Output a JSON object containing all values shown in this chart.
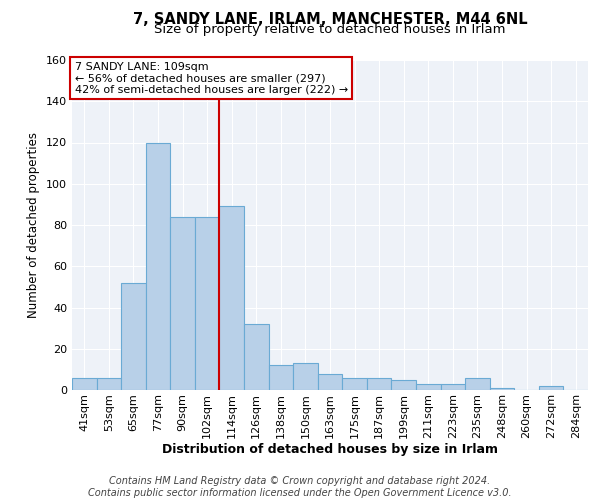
{
  "title": "7, SANDY LANE, IRLAM, MANCHESTER, M44 6NL",
  "subtitle": "Size of property relative to detached houses in Irlam",
  "xlabel": "Distribution of detached houses by size in Irlam",
  "ylabel": "Number of detached properties",
  "bar_labels": [
    "41sqm",
    "53sqm",
    "65sqm",
    "77sqm",
    "90sqm",
    "102sqm",
    "114sqm",
    "126sqm",
    "138sqm",
    "150sqm",
    "163sqm",
    "175sqm",
    "187sqm",
    "199sqm",
    "211sqm",
    "223sqm",
    "235sqm",
    "248sqm",
    "260sqm",
    "272sqm",
    "284sqm"
  ],
  "bar_values": [
    6,
    6,
    52,
    120,
    84,
    84,
    89,
    32,
    12,
    13,
    8,
    6,
    6,
    5,
    3,
    3,
    6,
    1,
    0,
    2,
    0
  ],
  "bar_color": "#b8d0e8",
  "bar_edge_color": "#6aaad4",
  "bar_edge_width": 0.8,
  "vline_x_index": 6,
  "vline_color": "#cc0000",
  "annotation_line1": "7 SANDY LANE: 109sqm",
  "annotation_line2": "← 56% of detached houses are smaller (297)",
  "annotation_line3": "42% of semi-detached houses are larger (222) →",
  "annotation_box_color": "#ffffff",
  "annotation_box_edge_color": "#cc0000",
  "ylim": [
    0,
    160
  ],
  "yticks": [
    0,
    20,
    40,
    60,
    80,
    100,
    120,
    140,
    160
  ],
  "background_color": "#eef2f8",
  "grid_color": "#ffffff",
  "footer_text": "Contains HM Land Registry data © Crown copyright and database right 2024.\nContains public sector information licensed under the Open Government Licence v3.0.",
  "title_fontsize": 10.5,
  "subtitle_fontsize": 9.5,
  "xlabel_fontsize": 9,
  "ylabel_fontsize": 8.5,
  "tick_fontsize": 8,
  "annotation_fontsize": 8,
  "footer_fontsize": 7
}
